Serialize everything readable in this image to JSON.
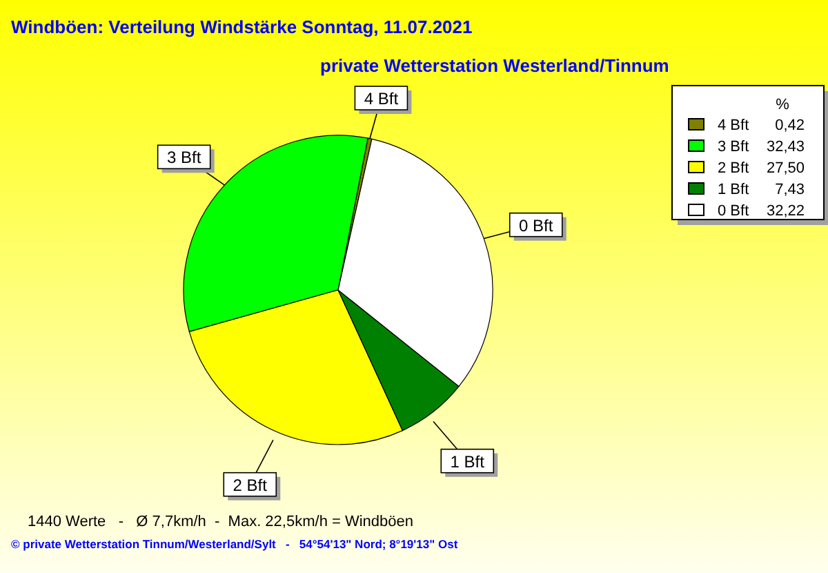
{
  "chart_data": {
    "type": "pie",
    "title": "Windböen: Verteilung Windstärke  Sonntag, 11.07.2021",
    "subtitle": "private Wetterstation Westerland/Tinnum",
    "categories": [
      "4 Bft",
      "3 Bft",
      "2 Bft",
      "1 Bft",
      "0 Bft"
    ],
    "values": [
      0.42,
      32.43,
      27.5,
      7.43,
      32.22
    ],
    "value_labels": [
      "0,42",
      "32,43",
      "27,50",
      "7,43",
      "32,22"
    ],
    "colors": [
      "#808000",
      "#00ff00",
      "#ffff00",
      "#008000",
      "#ffffff"
    ],
    "legend": "top right",
    "legend_title": "%",
    "annotations": [
      "1440 Werte   -   Ø 7,7km/h  -  Max. 22,5km/h = Windböen",
      "© private Wetterstation Tinnum/Westerland/Sylt   -   54°54'13\" Nord; 8°19'13\" Ost"
    ]
  }
}
